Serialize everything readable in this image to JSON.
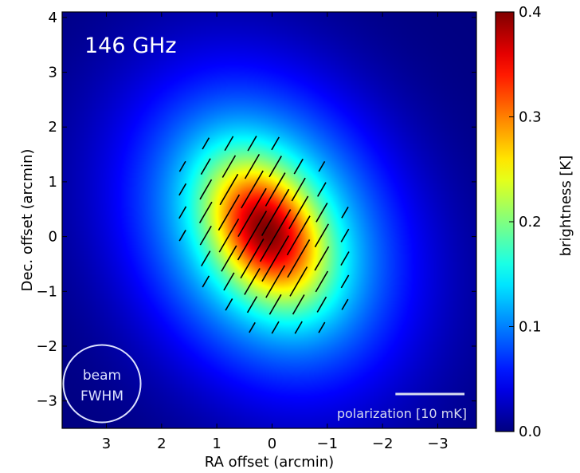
{
  "chart_data": {
    "type": "heatmap",
    "panel_label": "146 GHz",
    "xlabel": "RA offset (arcmin)",
    "ylabel": "Dec. offset (arcmin)",
    "xlim": [
      3.8,
      -3.7
    ],
    "ylim": [
      -3.5,
      4.1
    ],
    "x_ticks": [
      3,
      2,
      1,
      0,
      -1,
      -2,
      -3
    ],
    "y_ticks": [
      -3,
      -2,
      -1,
      0,
      1,
      2,
      3,
      4
    ],
    "x_tick_labels": [
      "3",
      "2",
      "1",
      "0",
      "−1",
      "−2",
      "−3"
    ],
    "y_tick_labels": [
      "−3",
      "−2",
      "−1",
      "0",
      "1",
      "2",
      "3",
      "4"
    ],
    "colorbar": {
      "label": "brightness [K]",
      "range": [
        0.0,
        0.4
      ],
      "ticks": [
        0.0,
        0.1,
        0.2,
        0.3,
        0.4
      ],
      "tick_labels": [
        "0.0",
        "0.1",
        "0.2",
        "0.3",
        "0.4"
      ],
      "colormap": "jet"
    },
    "source": {
      "peak_brightness_K": 0.4,
      "peak_center": [
        0.1,
        0.1
      ],
      "core_sigma_major": 0.9,
      "core_sigma_minor": 0.6,
      "envelope_sigma_major": 2.0,
      "envelope_sigma_minor": 1.55,
      "major_axis_position_angle_deg": -30
    },
    "polarization": {
      "grid_spacing_arcmin": 0.42,
      "vector_angle_deg": 60,
      "vector_scale_arcmin_per_mK": 0.125,
      "peak_polarized_intensity_mK": 9.0
    },
    "beam_label_line1": "beam",
    "beam_label_line2": "FWHM",
    "polarization_scale_label": "polarization [10 mK]",
    "beam_fwhm_arcmin": 1.4,
    "grid": false
  },
  "colors": {
    "beam_outline": "#dde2ff",
    "scale_bar": "#d8dcf0",
    "vectors": "#000000"
  }
}
